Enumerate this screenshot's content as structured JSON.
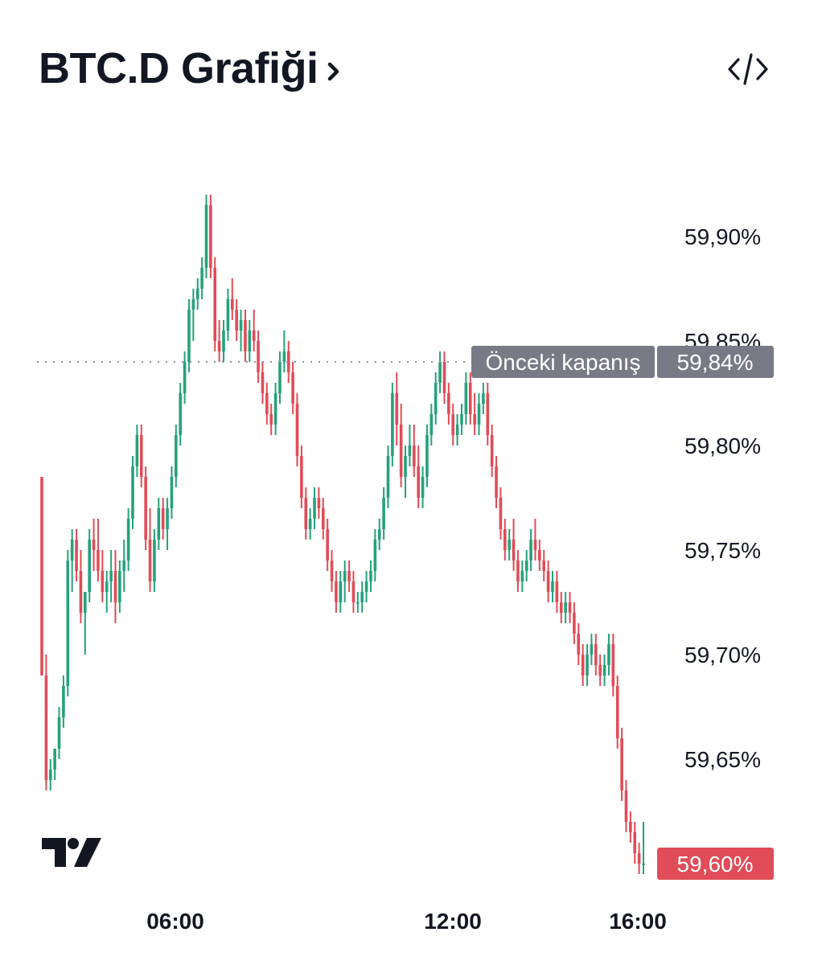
{
  "header": {
    "title": "BTC.D Grafiği",
    "title_chevron_icon": "chevron-right-icon",
    "embed_icon": "code-embed-icon"
  },
  "branding": {
    "logo_icon": "tradingview-logo-icon"
  },
  "colors": {
    "up": "#26a17b",
    "down": "#e04c57",
    "text": "#131722",
    "label_gray": "#787b86",
    "dotted": "#8e9099"
  },
  "chart_data": {
    "type": "candlestick",
    "symbol": "BTC.D",
    "y_ticks": [
      "59,90%",
      "59,85%",
      "59,80%",
      "59,75%",
      "59,70%",
      "59,65%"
    ],
    "y_tick_values": [
      59.9,
      59.85,
      59.8,
      59.75,
      59.7,
      59.65
    ],
    "ylim": [
      59.585,
      59.925
    ],
    "x_ticks": [
      "06:00",
      "12:00",
      "16:00"
    ],
    "x_tick_values": [
      6.0,
      12.0,
      16.0
    ],
    "xlim": [
      2.0,
      18.0
    ],
    "previous_close": {
      "label": "Önceki kapanış",
      "value_label": "59,84%",
      "value": 59.84
    },
    "last_price": {
      "label": "59,60%",
      "value": 59.6
    },
    "ohlc": [
      [
        59.785,
        59.785,
        59.69,
        59.69
      ],
      [
        59.69,
        59.7,
        59.635,
        59.64
      ],
      [
        59.64,
        59.65,
        59.635,
        59.645
      ],
      [
        59.645,
        59.655,
        59.64,
        59.655
      ],
      [
        59.655,
        59.675,
        59.65,
        59.67
      ],
      [
        59.67,
        59.69,
        59.665,
        59.685
      ],
      [
        59.685,
        59.75,
        59.68,
        59.745
      ],
      [
        59.745,
        59.76,
        59.73,
        59.755
      ],
      [
        59.755,
        59.76,
        59.735,
        59.74
      ],
      [
        59.74,
        59.75,
        59.715,
        59.72
      ],
      [
        59.72,
        59.73,
        59.7,
        59.73
      ],
      [
        59.73,
        59.76,
        59.725,
        59.755
      ],
      [
        59.755,
        59.765,
        59.74,
        59.75
      ],
      [
        59.75,
        59.765,
        59.735,
        59.74
      ],
      [
        59.74,
        59.75,
        59.725,
        59.73
      ],
      [
        59.73,
        59.74,
        59.72,
        59.735
      ],
      [
        59.735,
        59.75,
        59.725,
        59.74
      ],
      [
        59.74,
        59.75,
        59.715,
        59.725
      ],
      [
        59.725,
        59.745,
        59.72,
        59.74
      ],
      [
        59.74,
        59.755,
        59.73,
        59.745
      ],
      [
        59.745,
        59.77,
        59.74,
        59.765
      ],
      [
        59.765,
        59.795,
        59.76,
        59.79
      ],
      [
        59.79,
        59.81,
        59.785,
        59.805
      ],
      [
        59.805,
        59.81,
        59.78,
        59.785
      ],
      [
        59.785,
        59.79,
        59.75,
        59.755
      ],
      [
        59.755,
        59.77,
        59.73,
        59.735
      ],
      [
        59.735,
        59.76,
        59.73,
        59.755
      ],
      [
        59.755,
        59.775,
        59.75,
        59.77
      ],
      [
        59.77,
        59.775,
        59.755,
        59.76
      ],
      [
        59.76,
        59.775,
        59.75,
        59.77
      ],
      [
        59.77,
        59.79,
        59.765,
        59.785
      ],
      [
        59.785,
        59.81,
        59.78,
        59.805
      ],
      [
        59.805,
        59.83,
        59.8,
        59.825
      ],
      [
        59.825,
        59.845,
        59.82,
        59.84
      ],
      [
        59.84,
        59.87,
        59.835,
        59.865
      ],
      [
        59.865,
        59.875,
        59.85,
        59.87
      ],
      [
        59.87,
        59.88,
        59.865,
        59.875
      ],
      [
        59.875,
        59.89,
        59.87,
        59.885
      ],
      [
        59.885,
        59.92,
        59.88,
        59.915
      ],
      [
        59.915,
        59.92,
        59.88,
        59.885
      ],
      [
        59.885,
        59.89,
        59.845,
        59.85
      ],
      [
        59.85,
        59.86,
        59.84,
        59.845
      ],
      [
        59.845,
        59.86,
        59.84,
        59.855
      ],
      [
        59.855,
        59.875,
        59.85,
        59.87
      ],
      [
        59.87,
        59.88,
        59.86,
        59.865
      ],
      [
        59.865,
        59.87,
        59.85,
        59.855
      ],
      [
        59.855,
        59.865,
        59.845,
        59.86
      ],
      [
        59.86,
        59.865,
        59.84,
        59.845
      ],
      [
        59.845,
        59.86,
        59.84,
        59.855
      ],
      [
        59.855,
        59.865,
        59.845,
        59.85
      ],
      [
        59.85,
        59.855,
        59.83,
        59.835
      ],
      [
        59.835,
        59.84,
        59.82,
        59.825
      ],
      [
        59.825,
        59.83,
        59.81,
        59.815
      ],
      [
        59.815,
        59.82,
        59.805,
        59.81
      ],
      [
        59.81,
        59.83,
        59.805,
        59.825
      ],
      [
        59.825,
        59.845,
        59.82,
        59.84
      ],
      [
        59.84,
        59.855,
        59.835,
        59.845
      ],
      [
        59.845,
        59.85,
        59.83,
        59.835
      ],
      [
        59.835,
        59.84,
        59.815,
        59.82
      ],
      [
        59.82,
        59.825,
        59.79,
        59.795
      ],
      [
        59.795,
        59.8,
        59.77,
        59.775
      ],
      [
        59.775,
        59.78,
        59.755,
        59.76
      ],
      [
        59.76,
        59.77,
        59.755,
        59.765
      ],
      [
        59.765,
        59.78,
        59.76,
        59.775
      ],
      [
        59.775,
        59.78,
        59.765,
        59.77
      ],
      [
        59.77,
        59.775,
        59.755,
        59.76
      ],
      [
        59.76,
        59.765,
        59.74,
        59.745
      ],
      [
        59.745,
        59.75,
        59.73,
        59.735
      ],
      [
        59.735,
        59.74,
        59.72,
        59.725
      ],
      [
        59.725,
        59.74,
        59.72,
        59.735
      ],
      [
        59.735,
        59.745,
        59.725,
        59.74
      ],
      [
        59.74,
        59.745,
        59.73,
        59.735
      ],
      [
        59.735,
        59.74,
        59.72,
        59.725
      ],
      [
        59.725,
        59.73,
        59.72,
        59.725
      ],
      [
        59.725,
        59.735,
        59.72,
        59.73
      ],
      [
        59.73,
        59.74,
        59.725,
        59.735
      ],
      [
        59.735,
        59.745,
        59.73,
        59.74
      ],
      [
        59.74,
        59.76,
        59.735,
        59.755
      ],
      [
        59.755,
        59.765,
        59.75,
        59.76
      ],
      [
        59.76,
        59.78,
        59.755,
        59.775
      ],
      [
        59.775,
        59.8,
        59.77,
        59.795
      ],
      [
        59.795,
        59.83,
        59.79,
        59.825
      ],
      [
        59.825,
        59.835,
        59.8,
        59.81
      ],
      [
        59.81,
        59.82,
        59.78,
        59.785
      ],
      [
        59.785,
        59.8,
        59.775,
        59.795
      ],
      [
        59.795,
        59.81,
        59.79,
        59.8
      ],
      [
        59.8,
        59.81,
        59.785,
        59.79
      ],
      [
        59.79,
        59.8,
        59.77,
        59.775
      ],
      [
        59.775,
        59.79,
        59.77,
        59.785
      ],
      [
        59.785,
        59.81,
        59.78,
        59.805
      ],
      [
        59.805,
        59.82,
        59.8,
        59.815
      ],
      [
        59.815,
        59.835,
        59.81,
        59.83
      ],
      [
        59.83,
        59.845,
        59.825,
        59.84
      ],
      [
        59.84,
        59.845,
        59.82,
        59.825
      ],
      [
        59.825,
        59.83,
        59.81,
        59.815
      ],
      [
        59.815,
        59.82,
        59.8,
        59.805
      ],
      [
        59.805,
        59.815,
        59.8,
        59.81
      ],
      [
        59.81,
        59.82,
        59.805,
        59.815
      ],
      [
        59.815,
        59.835,
        59.81,
        59.83
      ],
      [
        59.83,
        59.835,
        59.81,
        59.815
      ],
      [
        59.815,
        59.825,
        59.805,
        59.81
      ],
      [
        59.81,
        59.825,
        59.805,
        59.82
      ],
      [
        59.82,
        59.83,
        59.815,
        59.825
      ],
      [
        59.825,
        59.83,
        59.8,
        59.805
      ],
      [
        59.805,
        59.81,
        59.785,
        59.79
      ],
      [
        59.79,
        59.795,
        59.77,
        59.775
      ],
      [
        59.775,
        59.78,
        59.755,
        59.76
      ],
      [
        59.76,
        59.765,
        59.745,
        59.75
      ],
      [
        59.75,
        59.76,
        59.745,
        59.755
      ],
      [
        59.755,
        59.765,
        59.74,
        59.745
      ],
      [
        59.745,
        59.75,
        59.73,
        59.735
      ],
      [
        59.735,
        59.745,
        59.73,
        59.74
      ],
      [
        59.74,
        59.75,
        59.735,
        59.745
      ],
      [
        59.745,
        59.76,
        59.74,
        59.755
      ],
      [
        59.755,
        59.765,
        59.745,
        59.75
      ],
      [
        59.75,
        59.755,
        59.74,
        59.745
      ],
      [
        59.745,
        59.75,
        59.735,
        59.74
      ],
      [
        59.74,
        59.745,
        59.725,
        59.73
      ],
      [
        59.73,
        59.74,
        59.725,
        59.735
      ],
      [
        59.735,
        59.74,
        59.72,
        59.725
      ],
      [
        59.725,
        59.73,
        59.715,
        59.72
      ],
      [
        59.72,
        59.73,
        59.715,
        59.725
      ],
      [
        59.725,
        59.73,
        59.715,
        59.72
      ],
      [
        59.72,
        59.725,
        59.705,
        59.71
      ],
      [
        59.71,
        59.715,
        59.695,
        59.7
      ],
      [
        59.7,
        59.705,
        59.685,
        59.69
      ],
      [
        59.69,
        59.705,
        59.685,
        59.7
      ],
      [
        59.7,
        59.71,
        59.695,
        59.705
      ],
      [
        59.705,
        59.71,
        59.69,
        59.695
      ],
      [
        59.695,
        59.7,
        59.685,
        59.69
      ],
      [
        59.69,
        59.7,
        59.685,
        59.695
      ],
      [
        59.695,
        59.71,
        59.69,
        59.705
      ],
      [
        59.705,
        59.71,
        59.68,
        59.685
      ],
      [
        59.685,
        59.69,
        59.655,
        59.66
      ],
      [
        59.66,
        59.665,
        59.63,
        59.635
      ],
      [
        59.635,
        59.64,
        59.615,
        59.62
      ],
      [
        59.62,
        59.625,
        59.61,
        59.615
      ],
      [
        59.615,
        59.62,
        59.6,
        59.605
      ],
      [
        59.605,
        59.61,
        59.595,
        59.6
      ],
      [
        59.6,
        59.62,
        59.595,
        59.6
      ]
    ]
  }
}
